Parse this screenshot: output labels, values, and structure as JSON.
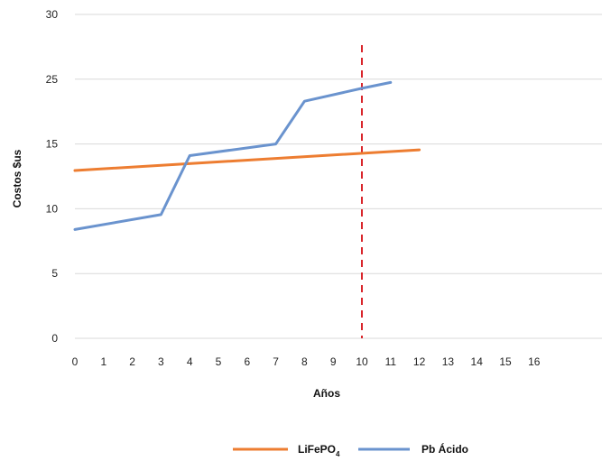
{
  "chart_data": {
    "type": "line",
    "title": "",
    "xlabel": "Años",
    "ylabel": "Costos $us",
    "x_ticks": [
      "0",
      "1",
      "2",
      "3",
      "4",
      "5",
      "6",
      "7",
      "8",
      "9",
      "10",
      "11",
      "12",
      "13",
      "14",
      "15",
      "16"
    ],
    "y_ticks": [
      "0",
      "5",
      "10",
      "15",
      "25",
      "30"
    ],
    "y_tick_levels": [
      0,
      1,
      2,
      3,
      4,
      5
    ],
    "xlim": [
      0,
      17
    ],
    "ylim_levels": [
      0,
      5
    ],
    "grid": true,
    "legend_position": "bottom",
    "series": [
      {
        "name": "LiFePO",
        "name_subscript": "4",
        "color": "#ED7D31",
        "x": [
          0,
          12
        ],
        "y_levels": [
          2.59,
          2.91
        ]
      },
      {
        "name": "Pb Ácido",
        "color": "#6A93CE",
        "x": [
          0,
          3,
          4,
          7,
          8,
          10,
          11
        ],
        "y_levels": [
          1.68,
          1.91,
          2.82,
          3.0,
          3.66,
          3.86,
          3.95
        ]
      }
    ],
    "reference_lines": [
      {
        "orientation": "vertical",
        "x": 10,
        "color": "#D9262C",
        "style": "dashed"
      }
    ]
  }
}
